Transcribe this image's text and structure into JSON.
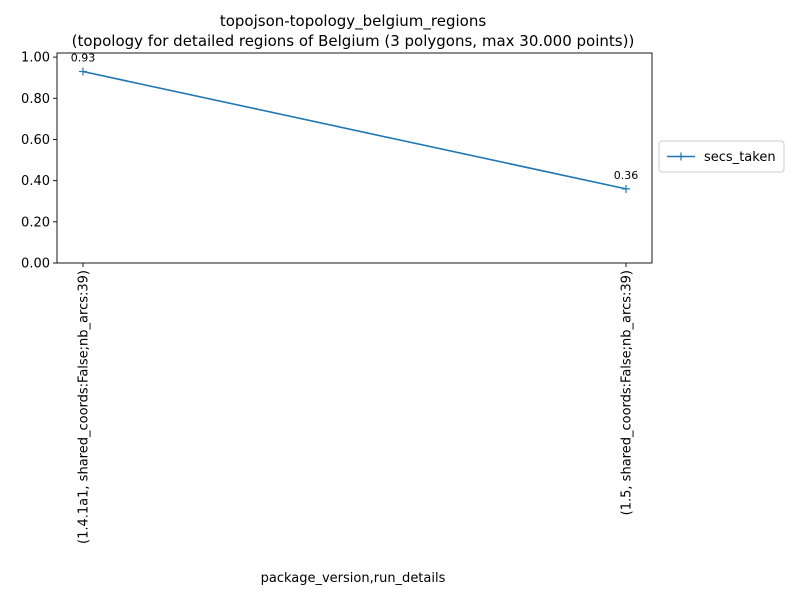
{
  "chart_data": {
    "type": "line",
    "title": "topojson-topology_belgium_regions",
    "subtitle": "(topology for detailed regions of Belgium (3 polygons, max 30.000 points))",
    "xlabel": "package_version,run_details",
    "ylabel": "",
    "categories": [
      "(1.4.1a1, shared_coords:False;nb_arcs:39)",
      "(1.5, shared_coords:False;nb_arcs:39)"
    ],
    "series": [
      {
        "name": "secs_taken",
        "values": [
          0.93,
          0.36
        ],
        "color": "#1f77b4",
        "marker": "+"
      }
    ],
    "data_labels": [
      "0.93",
      "0.36"
    ],
    "ylim": [
      0,
      1.02
    ],
    "yticks": [
      0.0,
      0.2,
      0.4,
      0.6,
      0.8,
      1.0
    ],
    "ytick_labels": [
      "0.00",
      "0.20",
      "0.40",
      "0.60",
      "0.80",
      "1.00"
    ],
    "grid": false,
    "legend": "right"
  }
}
